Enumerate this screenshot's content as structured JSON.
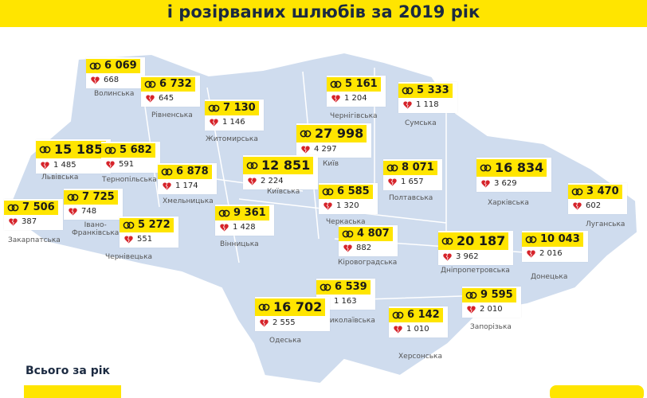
{
  "header": {
    "title": "і розірваних шлюбів за 2019 рік"
  },
  "footer": {
    "total_label": "Всього за рік"
  },
  "regions": [
    {
      "name": "Волинська",
      "marriages": "6 069",
      "divorces": "668"
    },
    {
      "name": "Рівненська",
      "marriages": "6 732",
      "divorces": "645"
    },
    {
      "name": "Житомирська",
      "marriages": "7 130",
      "divorces": "1 146"
    },
    {
      "name": "Чернігівська",
      "marriages": "5 161",
      "divorces": "1 204"
    },
    {
      "name": "Сумська",
      "marriages": "5 333",
      "divorces": "1 118"
    },
    {
      "name": "Київ",
      "marriages": "27 998",
      "divorces": "4 297"
    },
    {
      "name": "Київська",
      "marriages": "12 851",
      "divorces": "2 224"
    },
    {
      "name": "Львівська",
      "marriages": "15 185",
      "divorces": "1 485"
    },
    {
      "name": "Тернопільська",
      "marriages": "5 682",
      "divorces": "591"
    },
    {
      "name": "Хмельницька",
      "marriages": "6 878",
      "divorces": "1 174"
    },
    {
      "name": "Полтавська",
      "marriages": "8 071",
      "divorces": "1 657"
    },
    {
      "name": "Харківська",
      "marriages": "16 834",
      "divorces": "3 629"
    },
    {
      "name": "Черкаська",
      "marriages": "6 585",
      "divorces": "1 320"
    },
    {
      "name": "Закарпатська",
      "marriages": "7 506",
      "divorces": "387"
    },
    {
      "name": "Івано-\nФранківська",
      "marriages": "7 725",
      "divorces": "748"
    },
    {
      "name": "Вінницька",
      "marriages": "9 361",
      "divorces": "1 428"
    },
    {
      "name": "Луганська",
      "marriages": "3 470",
      "divorces": "602"
    },
    {
      "name": "Чернівецька",
      "marriages": "5 272",
      "divorces": "551"
    },
    {
      "name": "Кіровоградська",
      "marriages": "4 807",
      "divorces": "882"
    },
    {
      "name": "Дніпропетровська",
      "marriages": "20 187",
      "divorces": "3 962"
    },
    {
      "name": "Донецька",
      "marriages": "10 043",
      "divorces": "2 016"
    },
    {
      "name": "Миколаївська",
      "marriages": "6 539",
      "divorces": "1 163"
    },
    {
      "name": "Одеська",
      "marriages": "16 702",
      "divorces": "2 555"
    },
    {
      "name": "Запорізька",
      "marriages": "9 595",
      "divorces": "2 010"
    },
    {
      "name": "Херсонська",
      "marriages": "6 142",
      "divorces": "1 010"
    }
  ]
}
